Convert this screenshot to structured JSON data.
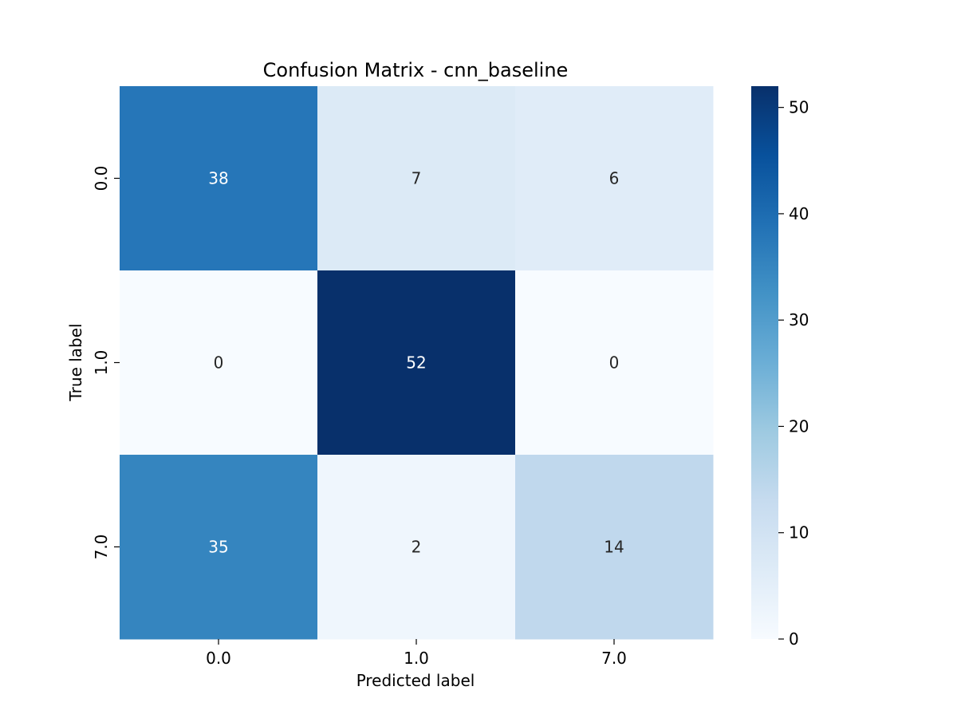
{
  "chart_data": {
    "type": "heatmap",
    "title": "Confusion Matrix - cnn_baseline",
    "xlabel": "Predicted label",
    "ylabel": "True label",
    "x_categories": [
      "0.0",
      "1.0",
      "7.0"
    ],
    "y_categories": [
      "0.0",
      "1.0",
      "7.0"
    ],
    "values": [
      [
        38,
        7,
        6
      ],
      [
        0,
        52,
        0
      ],
      [
        35,
        2,
        14
      ]
    ],
    "colormap": "Blues",
    "colorbar": {
      "min": 0,
      "max": 52,
      "ticks": [
        0,
        10,
        20,
        30,
        40,
        50
      ]
    },
    "grid": false
  }
}
